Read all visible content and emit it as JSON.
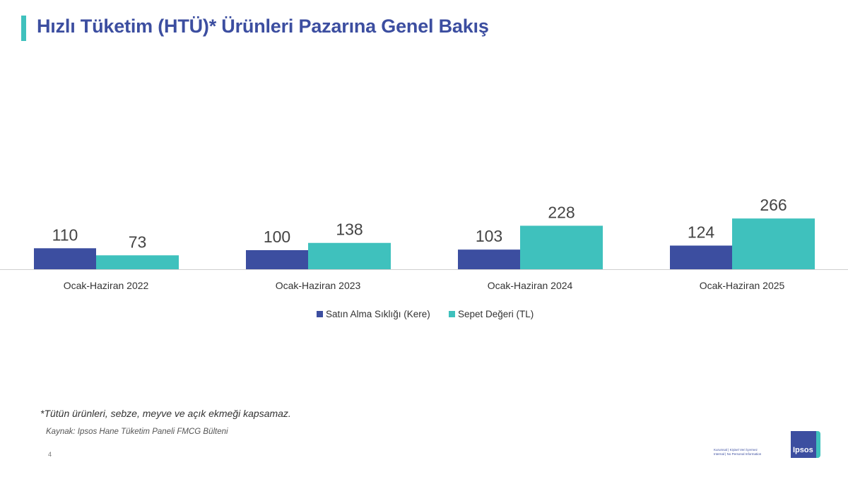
{
  "header": {
    "title": "Hızlı Tüketim (HTÜ)* Ürünleri Pazarına Genel Bakış"
  },
  "colors": {
    "series1": "#3c4ea0",
    "series2": "#3fc1bd",
    "accent": "#3fc1bd"
  },
  "chart_data": {
    "type": "bar",
    "title": "",
    "categories": [
      "Ocak-Haziran 2022",
      "Ocak-Haziran 2023",
      "Ocak-Haziran 2024",
      "Ocak-Haziran 2025"
    ],
    "series": [
      {
        "name": "Satın Alma Sıklığı (Kere)",
        "values": [
          110,
          100,
          103,
          124
        ],
        "value_labels": [
          "110",
          "100",
          "103",
          "124"
        ]
      },
      {
        "name": "Sepet Değeri (TL)",
        "values": [
          73,
          138,
          228,
          266
        ],
        "value_labels": [
          "73",
          "138",
          "228",
          "266"
        ]
      }
    ],
    "xlabel": "",
    "ylabel": "",
    "legend_position": "bottom",
    "grid": false
  },
  "footnote": "*Tütün ürünleri, sebze, meyve ve açık ekmeği kapsamaz.",
  "source": "Kaynak: Ipsos Hane Tüketim Paneli FMCG Bülteni",
  "page_number": "4",
  "classification": {
    "line1": "Kurumsal | Kişisel Veri İçermez",
    "line2": "Internal | No Personal Information"
  },
  "logo": {
    "text": "Ipsos"
  }
}
